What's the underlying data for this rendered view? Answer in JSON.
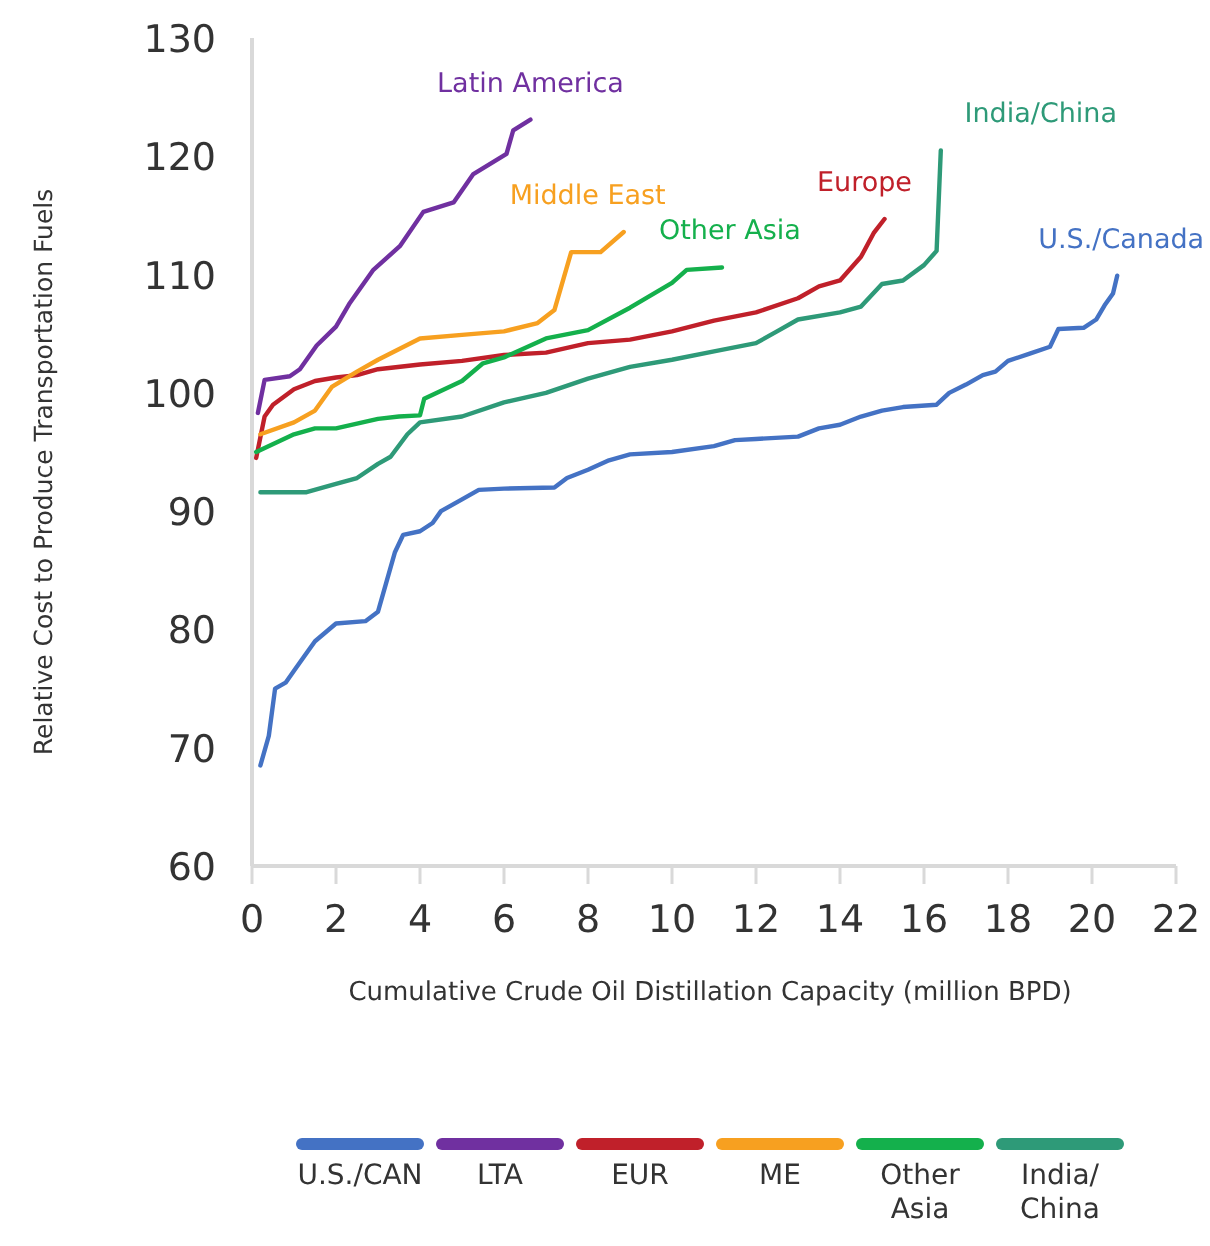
{
  "chart_data": {
    "type": "line",
    "xlabel": "Cumulative Crude Oil Distillation Capacity (million BPD)",
    "ylabel": "Relative Cost to Produce Transportation Fuels",
    "xlim": [
      0,
      22
    ],
    "xticks": [
      0,
      2,
      4,
      6,
      8,
      10,
      12,
      14,
      16,
      18,
      20,
      22
    ],
    "ylim": [
      60,
      130
    ],
    "yticks": [
      60,
      70,
      80,
      90,
      100,
      110,
      120,
      130
    ],
    "legend": "bottom",
    "series": [
      {
        "name": "U.S./CAN",
        "color": "#4472c4",
        "x": [
          0.2,
          0.4,
          0.55,
          0.8,
          1.0,
          1.3,
          1.5,
          2,
          2.7,
          3,
          3.2,
          3.4,
          3.6,
          4.0,
          4.3,
          4.5,
          5,
          5.4,
          6,
          7.2,
          7.5,
          8,
          8.5,
          9,
          10,
          11,
          11.5,
          12,
          13,
          13.5,
          14,
          14.5,
          15,
          15.5,
          16.3,
          16.6,
          17,
          17.4,
          17.7,
          18,
          18.5,
          19,
          19.2,
          19.8,
          20.1,
          20.3,
          20.5,
          20.6
        ],
        "values": [
          68.5,
          71,
          75,
          75.5,
          76.5,
          78,
          79,
          80.5,
          80.7,
          81.5,
          84,
          86.5,
          88,
          88.3,
          89,
          90,
          91,
          91.8,
          91.9,
          92,
          92.8,
          93.5,
          94.3,
          94.8,
          95,
          95.5,
          96,
          96.1,
          96.3,
          97,
          97.3,
          98,
          98.5,
          98.8,
          99,
          100,
          100.7,
          101.5,
          101.8,
          102.7,
          103.3,
          103.9,
          105.4,
          105.5,
          106.2,
          107.4,
          108.4,
          109.9
        ]
      },
      {
        "name": "LTA",
        "color": "#7030a0",
        "x": [
          0.14,
          0.3,
          0.9,
          1.14,
          1.54,
          2.0,
          2.33,
          2.89,
          3.52,
          4.08,
          4.8,
          5.27,
          6.06,
          6.22,
          6.63
        ],
        "values": [
          98.3,
          101.1,
          101.4,
          102,
          104,
          105.6,
          107.6,
          110.4,
          112.4,
          115.3,
          116.1,
          118.5,
          120.2,
          122.2,
          123.1
        ]
      },
      {
        "name": "EUR",
        "color": "#c0202a",
        "x": [
          0.1,
          0.3,
          0.5,
          1,
          1.5,
          2,
          2.5,
          3,
          4,
          5,
          6,
          7,
          8,
          9,
          10,
          11,
          12,
          13,
          13.5,
          14,
          14.5,
          14.8,
          15.06
        ],
        "values": [
          94.5,
          98,
          99,
          100.3,
          101,
          101.3,
          101.5,
          102,
          102.4,
          102.7,
          103.2,
          103.4,
          104.2,
          104.5,
          105.2,
          106.1,
          106.8,
          108,
          109,
          109.5,
          111.5,
          113.5,
          114.7
        ]
      },
      {
        "name": "ME",
        "color": "#f7a020",
        "x": [
          0.2,
          1,
          1.5,
          1.9,
          2.5,
          3,
          4,
          5,
          6,
          6.8,
          7.2,
          7.6,
          8.3,
          8.85
        ],
        "values": [
          96.5,
          97.5,
          98.5,
          100.5,
          101.8,
          102.8,
          104.6,
          104.9,
          105.2,
          105.9,
          107,
          111.9,
          111.9,
          113.6
        ]
      },
      {
        "name": "Other Asia",
        "color": "#14b04c",
        "x": [
          0.1,
          1,
          1.5,
          2,
          3,
          3.5,
          4,
          4.1,
          5,
          5.5,
          6,
          7,
          8,
          9,
          10,
          10.35,
          11.19
        ],
        "values": [
          95,
          96.5,
          97,
          97,
          97.8,
          98,
          98.1,
          99.5,
          101,
          102.5,
          103,
          104.6,
          105.3,
          107.2,
          109.3,
          110.4,
          110.6
        ]
      },
      {
        "name": "India/China",
        "color": "#2e9a78",
        "x": [
          0.2,
          1.3,
          2,
          2.5,
          3.0,
          3.3,
          3.7,
          4,
          5,
          6,
          7,
          8,
          9,
          10,
          11,
          12,
          12.5,
          13,
          14,
          14.5,
          15,
          15.5,
          16,
          16.3,
          16.4
        ],
        "values": [
          91.6,
          91.6,
          92.3,
          92.8,
          94,
          94.6,
          96.5,
          97.5,
          98,
          99.2,
          100,
          101.2,
          102.2,
          102.8,
          103.5,
          104.2,
          105.2,
          106.2,
          106.8,
          107.3,
          109.2,
          109.5,
          110.8,
          112,
          120.5
        ]
      }
    ],
    "annotations": [
      "U.S./Canada",
      "Latin America",
      "Europe",
      "Middle East",
      "Other Asia",
      "India/China"
    ]
  }
}
